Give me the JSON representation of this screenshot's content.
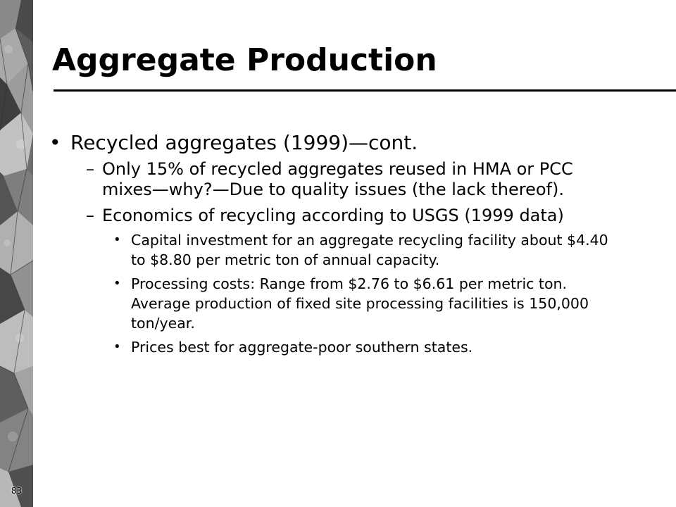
{
  "slide": {
    "title": "Aggregate Production",
    "page_number": "83",
    "bullets": [
      {
        "text": "Recycled aggregates (1999)—cont.",
        "children": [
          {
            "text": "Only 15% of recycled aggregates reused in HMA or PCC mixes—why?—Due to quality issues (the lack thereof)."
          },
          {
            "text": "Economics of recycling according to USGS (1999 data)",
            "children": [
              {
                "text": "Capital investment for an aggregate recycling facility about $4.40 to $8.80 per metric ton of annual capacity."
              },
              {
                "text": "Processing costs: Range from $2.76 to $6.61 per metric ton. Average production of fixed site processing facilities is 150,000 ton/year."
              },
              {
                "text": "Prices best for aggregate-poor southern states."
              }
            ]
          }
        ]
      }
    ]
  },
  "markers": {
    "level1": "•",
    "level2": "–",
    "level3": "•"
  },
  "colors": {
    "text": "#000000",
    "background": "#ffffff",
    "rock_dark": "#3c3c3c",
    "rock_mid": "#7c7c7c",
    "rock_light": "#b4b4b4"
  },
  "icons": {
    "side_decoration": "rock-texture-image"
  }
}
